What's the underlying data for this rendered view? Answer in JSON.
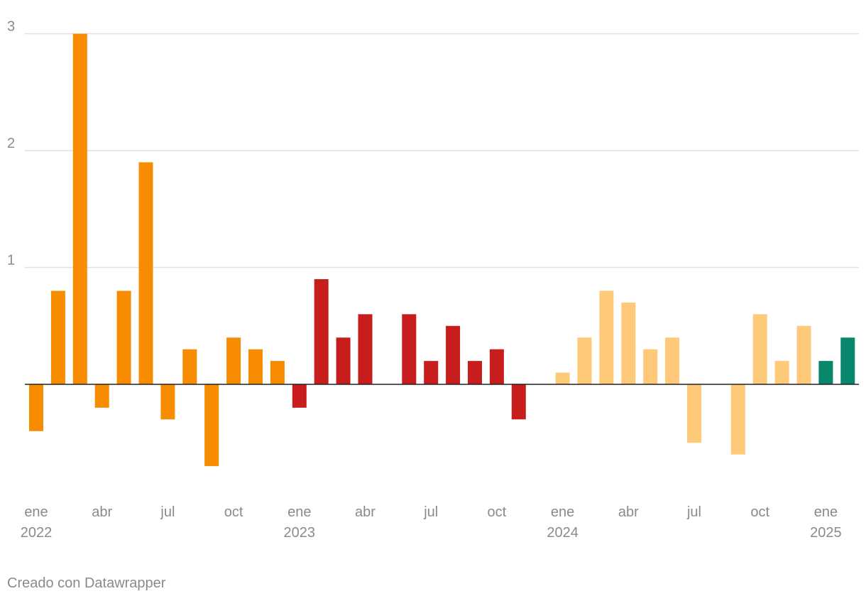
{
  "chart_data": {
    "type": "bar",
    "ylim": [
      -1.0,
      3.0
    ],
    "yticks": [
      1,
      2,
      3
    ],
    "grid": true,
    "legend": "none",
    "categories": [
      "2022-01",
      "2022-02",
      "2022-03",
      "2022-04",
      "2022-05",
      "2022-06",
      "2022-07",
      "2022-08",
      "2022-09",
      "2022-10",
      "2022-11",
      "2022-12",
      "2023-01",
      "2023-02",
      "2023-03",
      "2023-04",
      "2023-05",
      "2023-06",
      "2023-07",
      "2023-08",
      "2023-09",
      "2023-10",
      "2023-11",
      "2023-12",
      "2024-01",
      "2024-02",
      "2024-03",
      "2024-04",
      "2024-05",
      "2024-06",
      "2024-07",
      "2024-08",
      "2024-09",
      "2024-10",
      "2024-11",
      "2024-12",
      "2025-01",
      "2025-02"
    ],
    "values": [
      -0.4,
      0.8,
      3.0,
      -0.2,
      0.8,
      1.9,
      -0.3,
      0.3,
      -0.7,
      0.4,
      0.3,
      0.2,
      -0.2,
      0.9,
      0.4,
      0.6,
      0.0,
      0.6,
      0.2,
      0.5,
      0.2,
      0.3,
      -0.3,
      0.0,
      0.1,
      0.4,
      0.8,
      0.7,
      0.3,
      0.4,
      -0.5,
      0.0,
      -0.6,
      0.6,
      0.2,
      0.5,
      0.2,
      0.4
    ],
    "colors": {
      "2022": "#f78c00",
      "2023": "#c71e1d",
      "2024": "#fec978",
      "2025": "#09876c"
    },
    "x_tick_labels": [
      {
        "index": 0,
        "month": "ene",
        "year": "2022"
      },
      {
        "index": 3,
        "month": "abr",
        "year": ""
      },
      {
        "index": 6,
        "month": "jul",
        "year": ""
      },
      {
        "index": 9,
        "month": "oct",
        "year": ""
      },
      {
        "index": 12,
        "month": "ene",
        "year": "2023"
      },
      {
        "index": 15,
        "month": "abr",
        "year": ""
      },
      {
        "index": 18,
        "month": "jul",
        "year": ""
      },
      {
        "index": 21,
        "month": "oct",
        "year": ""
      },
      {
        "index": 24,
        "month": "ene",
        "year": "2024"
      },
      {
        "index": 27,
        "month": "abr",
        "year": ""
      },
      {
        "index": 30,
        "month": "jul",
        "year": ""
      },
      {
        "index": 33,
        "month": "oct",
        "year": ""
      },
      {
        "index": 36,
        "month": "ene",
        "year": "2025"
      }
    ]
  },
  "footer": {
    "credit": "Creado con Datawrapper"
  }
}
